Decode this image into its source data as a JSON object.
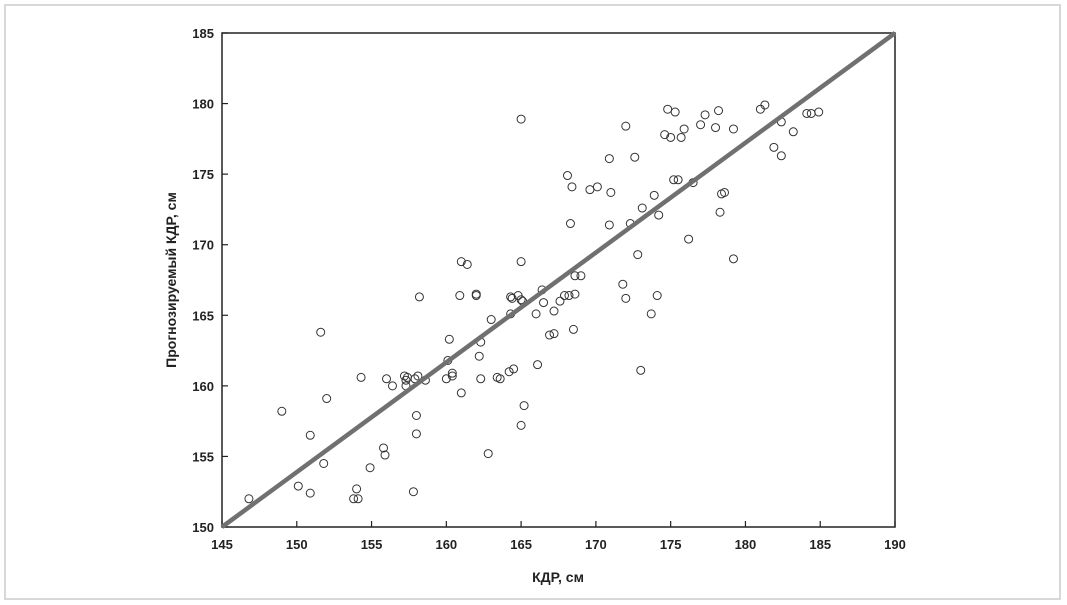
{
  "chart_data": {
    "type": "scatter",
    "xlabel": "КДР, см",
    "ylabel": "Прогнозируемый КДР, см",
    "xlim": [
      145,
      190
    ],
    "ylim": [
      150,
      185
    ],
    "x_ticks": [
      145,
      150,
      155,
      160,
      165,
      170,
      175,
      180,
      185,
      190
    ],
    "y_ticks": [
      150,
      155,
      160,
      165,
      170,
      175,
      180,
      185
    ],
    "grid": false,
    "reference_line": {
      "from": [
        145,
        150
      ],
      "to": [
        190,
        185
      ],
      "color": "#707070"
    },
    "point_color": "#333333",
    "series": [
      {
        "points": [
          [
            146.8,
            152.0
          ],
          [
            149.0,
            158.2
          ],
          [
            150.1,
            152.9
          ],
          [
            150.9,
            156.5
          ],
          [
            150.9,
            152.4
          ],
          [
            151.6,
            163.8
          ],
          [
            151.8,
            154.5
          ],
          [
            152.0,
            159.1
          ],
          [
            153.8,
            152.0
          ],
          [
            154.0,
            152.7
          ],
          [
            154.1,
            152.0
          ],
          [
            154.3,
            160.6
          ],
          [
            154.9,
            154.2
          ],
          [
            155.8,
            155.6
          ],
          [
            155.9,
            155.1
          ],
          [
            156.0,
            160.5
          ],
          [
            156.4,
            160.0
          ],
          [
            157.2,
            160.7
          ],
          [
            157.3,
            160.0
          ],
          [
            157.3,
            160.4
          ],
          [
            157.4,
            160.6
          ],
          [
            157.8,
            152.5
          ],
          [
            157.9,
            160.5
          ],
          [
            158.0,
            157.9
          ],
          [
            158.0,
            156.6
          ],
          [
            158.1,
            160.7
          ],
          [
            158.2,
            166.3
          ],
          [
            158.6,
            160.4
          ],
          [
            160.0,
            160.5
          ],
          [
            160.1,
            161.8
          ],
          [
            160.2,
            163.3
          ],
          [
            160.4,
            160.7
          ],
          [
            160.4,
            160.9
          ],
          [
            160.9,
            166.4
          ],
          [
            161.0,
            168.8
          ],
          [
            161.0,
            159.5
          ],
          [
            161.4,
            168.6
          ],
          [
            162.0,
            166.4
          ],
          [
            162.0,
            166.5
          ],
          [
            162.2,
            162.1
          ],
          [
            162.3,
            160.5
          ],
          [
            162.3,
            163.1
          ],
          [
            162.8,
            155.2
          ],
          [
            163.0,
            164.7
          ],
          [
            163.4,
            160.6
          ],
          [
            163.6,
            160.5
          ],
          [
            164.2,
            161.0
          ],
          [
            164.3,
            166.3
          ],
          [
            164.3,
            165.1
          ],
          [
            164.4,
            166.2
          ],
          [
            164.5,
            161.2
          ],
          [
            164.8,
            166.4
          ],
          [
            165.0,
            178.9
          ],
          [
            165.0,
            168.8
          ],
          [
            165.0,
            157.2
          ],
          [
            165.0,
            166.1
          ],
          [
            165.1,
            166.0
          ],
          [
            165.2,
            158.6
          ],
          [
            166.0,
            165.1
          ],
          [
            166.1,
            161.5
          ],
          [
            166.4,
            166.8
          ],
          [
            166.5,
            165.9
          ],
          [
            166.9,
            163.6
          ],
          [
            167.2,
            163.7
          ],
          [
            167.2,
            165.3
          ],
          [
            167.6,
            166.0
          ],
          [
            167.9,
            166.4
          ],
          [
            168.1,
            174.9
          ],
          [
            168.2,
            166.4
          ],
          [
            168.3,
            171.5
          ],
          [
            168.4,
            174.1
          ],
          [
            168.5,
            164.0
          ],
          [
            168.6,
            166.5
          ],
          [
            168.6,
            167.8
          ],
          [
            169.0,
            167.8
          ],
          [
            169.6,
            173.9
          ],
          [
            170.1,
            174.1
          ],
          [
            170.9,
            176.1
          ],
          [
            170.9,
            171.4
          ],
          [
            171.0,
            173.7
          ],
          [
            171.8,
            167.2
          ],
          [
            172.0,
            178.4
          ],
          [
            172.0,
            166.2
          ],
          [
            172.3,
            171.5
          ],
          [
            172.6,
            176.2
          ],
          [
            172.8,
            169.3
          ],
          [
            173.0,
            161.1
          ],
          [
            173.1,
            172.6
          ],
          [
            173.7,
            165.1
          ],
          [
            173.9,
            173.5
          ],
          [
            174.1,
            166.4
          ],
          [
            174.2,
            172.1
          ],
          [
            174.6,
            177.8
          ],
          [
            174.8,
            179.6
          ],
          [
            175.0,
            177.6
          ],
          [
            175.2,
            174.6
          ],
          [
            175.3,
            179.4
          ],
          [
            175.5,
            174.6
          ],
          [
            175.7,
            177.6
          ],
          [
            175.9,
            178.2
          ],
          [
            176.2,
            170.4
          ],
          [
            176.5,
            174.4
          ],
          [
            177.0,
            178.5
          ],
          [
            177.3,
            179.2
          ],
          [
            178.0,
            178.3
          ],
          [
            178.2,
            179.5
          ],
          [
            178.3,
            172.3
          ],
          [
            178.4,
            173.6
          ],
          [
            178.6,
            173.7
          ],
          [
            179.2,
            169.0
          ],
          [
            179.2,
            178.2
          ],
          [
            181.0,
            179.6
          ],
          [
            181.3,
            179.9
          ],
          [
            181.9,
            176.9
          ],
          [
            182.4,
            176.3
          ],
          [
            182.4,
            178.7
          ],
          [
            183.2,
            178.0
          ],
          [
            184.1,
            179.3
          ],
          [
            184.4,
            179.3
          ],
          [
            184.9,
            179.4
          ]
        ]
      }
    ]
  }
}
